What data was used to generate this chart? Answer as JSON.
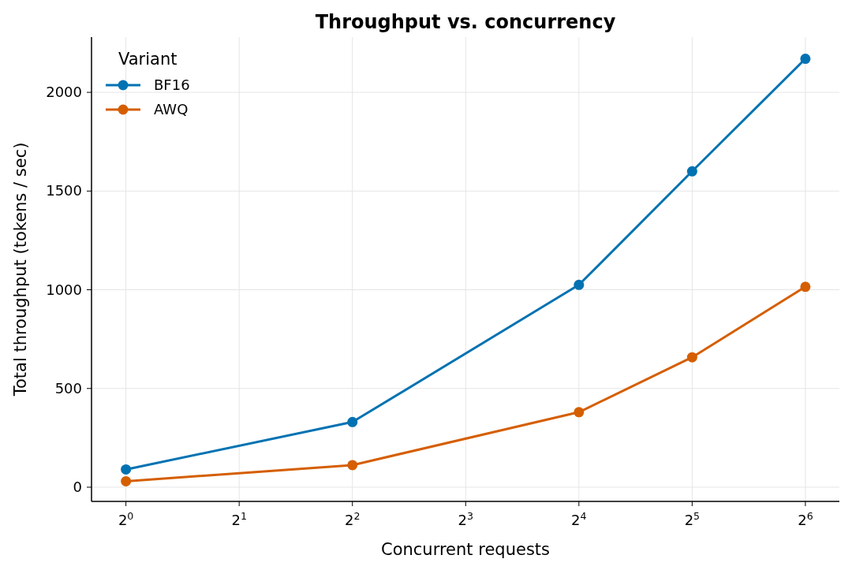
{
  "chart_data": {
    "type": "line",
    "title": "Throughput vs. concurrency",
    "xlabel": "Concurrent requests",
    "ylabel": "Total throughput (tokens / sec)",
    "legend_title": "Variant",
    "x": [
      1,
      4,
      16,
      32,
      64
    ],
    "series": [
      {
        "name": "BF16",
        "color": "#0072b2",
        "values": [
          90,
          330,
          1025,
          1600,
          2170
        ]
      },
      {
        "name": "AWQ",
        "color": "#d55e00",
        "values": [
          30,
          112,
          380,
          658,
          1015
        ]
      }
    ],
    "log": "x",
    "xlim": [
      0.81,
      78.8
    ],
    "ylim": [
      -72,
      2280
    ],
    "xticks": [
      {
        "value": 1,
        "label": "2$^{0}$"
      },
      {
        "value": 2,
        "label": "2$^{1}$"
      },
      {
        "value": 4,
        "label": "2$^{2}$"
      },
      {
        "value": 8,
        "label": "2$^{3}$"
      },
      {
        "value": 16,
        "label": "2$^{4}$"
      },
      {
        "value": 32,
        "label": "2$^{5}$"
      },
      {
        "value": 64,
        "label": "2$^{6}$"
      }
    ],
    "yticks": [
      0,
      500,
      1000,
      1500,
      2000
    ],
    "grid": true,
    "legend": "top left",
    "marker": "circle",
    "line_style": "solid"
  }
}
